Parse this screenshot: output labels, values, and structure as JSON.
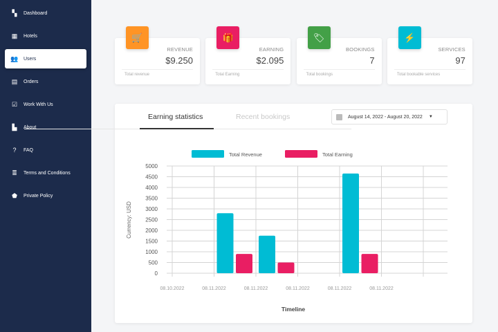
{
  "sidebar": {
    "items": [
      {
        "label": "Dashboard",
        "icon": "dashboard-icon",
        "glyph": "▚"
      },
      {
        "label": "Hotels",
        "icon": "hotel-icon",
        "glyph": "▦"
      },
      {
        "label": "Users",
        "icon": "users-icon",
        "glyph": "👥"
      },
      {
        "label": "Orders",
        "icon": "orders-icon",
        "glyph": "▤"
      },
      {
        "label": "Work With Us",
        "icon": "clipboard-check-icon",
        "glyph": "☑"
      },
      {
        "label": "About",
        "icon": "document-icon",
        "glyph": "▙"
      },
      {
        "label": "FAQ",
        "icon": "help-circle-icon",
        "glyph": "?"
      },
      {
        "label": "Terms and Conditions",
        "icon": "list-icon",
        "glyph": "≣"
      },
      {
        "label": "Private Policy",
        "icon": "shield-icon",
        "glyph": "⬟"
      }
    ],
    "active": "Users"
  },
  "cards": [
    {
      "label": "REVENUE",
      "value": "$9.250",
      "footer": "Total revenue",
      "color": "#ff9425",
      "icon": "cart-icon",
      "glyph": "🛒"
    },
    {
      "label": "EARNING",
      "value": "$2.095",
      "footer": "Total Earning",
      "color": "#e91e63",
      "icon": "gift-icon",
      "glyph": "🎁"
    },
    {
      "label": "BOOKINGS",
      "value": "7",
      "footer": "Total bookings",
      "color": "#43a047",
      "icon": "tag-icon",
      "glyph": "🏷"
    },
    {
      "label": "SERVICES",
      "value": "97",
      "footer": "Total bookable services",
      "color": "#00bcd4",
      "icon": "lightning-icon",
      "glyph": "⚡"
    }
  ],
  "tabs": [
    {
      "label": "Earning statistics",
      "active": true
    },
    {
      "label": "Recent bookings",
      "active": false
    }
  ],
  "date_range": "August 14, 2022 - August 20, 2022",
  "chart_data": {
    "type": "bar",
    "x_tick_labels": [
      "08.10.2022",
      "08.11.2022",
      "08.11.2022",
      "08.11.2022",
      "08.11.2022",
      "08.11.2022",
      ""
    ],
    "series": [
      {
        "name": "Total Revenue",
        "color": "#00bcd4",
        "values": [
          0,
          2800,
          1750,
          0,
          4650,
          0,
          0
        ]
      },
      {
        "name": "Total Earning",
        "color": "#e91e63",
        "values": [
          0,
          900,
          500,
          0,
          900,
          0,
          0
        ]
      }
    ],
    "ylim": [
      0,
      5000
    ],
    "yticks": [
      0,
      500,
      1000,
      1500,
      2000,
      2500,
      3000,
      3500,
      4000,
      4500,
      5000
    ],
    "xlabel": "Timeline",
    "ylabel": "Currency: USD",
    "legend": "top",
    "grid": true
  }
}
